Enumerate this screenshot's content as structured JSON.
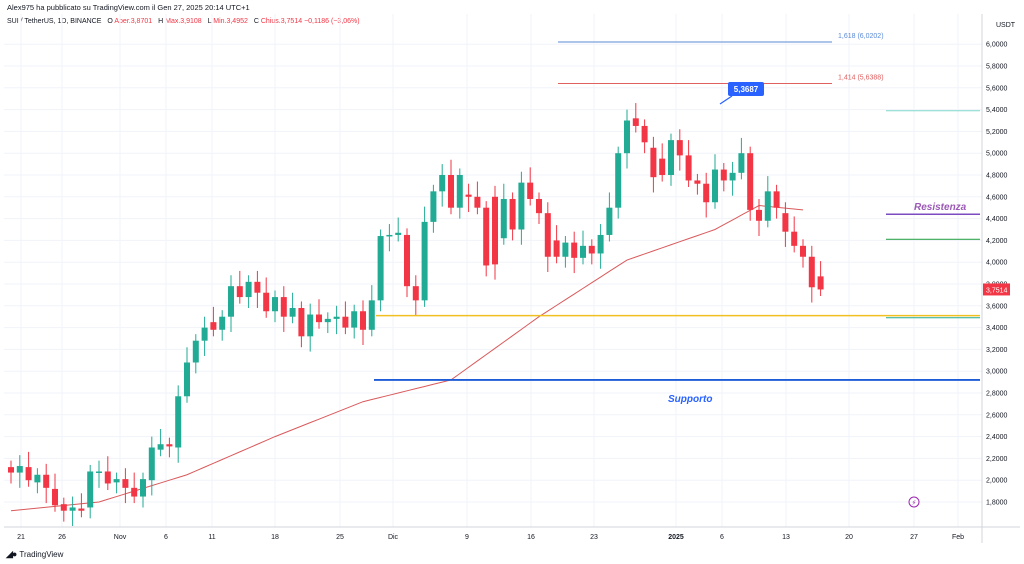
{
  "header": {
    "published": "Alex975 ha pubblicato su TradingView.com il Gen 27, 2025 20:14 UTC+1",
    "symbol": "SUI / TetherUS, 1D, BINANCE",
    "ohlc": {
      "open_label": "O",
      "open": "Aper.3,8701",
      "high_label": "H",
      "high": "Max.3,9108",
      "low_label": "L",
      "low": "Min.3,4952",
      "close_label": "C",
      "close": "Chius.3,7514",
      "change": "−0,1186 (−3,06%)"
    }
  },
  "brand": {
    "name": "TradingView",
    "logo": "tradingview-logo-icon"
  },
  "colors": {
    "up": "#22ab94",
    "down": "#f23645",
    "ma": "#d9595b",
    "support": "#1e5bd6",
    "yellow": "#f0c020",
    "resistance": "#7b4bbf",
    "green_line": "#36a852",
    "fib1618": "#5b8ad6",
    "fib1414": "#e06060",
    "teal": "#80d8cc"
  },
  "chart_data": {
    "type": "candlestick",
    "currency": "USDT",
    "ylim": [
      1.4,
      6.2
    ],
    "y_ticks": [
      "1,8000",
      "2,0000",
      "2,2000",
      "2,4000",
      "2,6000",
      "2,8000",
      "3,0000",
      "3,2000",
      "3,4000",
      "3,6000",
      "3,8000",
      "4,0000",
      "4,2000",
      "4,4000",
      "4,6000",
      "4,8000",
      "5,0000",
      "5,2000",
      "5,4000",
      "5,6000",
      "5,8000",
      "6,0000"
    ],
    "x_ticks": [
      "21",
      "26",
      "Nov",
      "6",
      "11",
      "18",
      "25",
      "Dic",
      "9",
      "16",
      "23",
      "2025",
      "6",
      "13",
      "20",
      "27",
      "Feb"
    ],
    "last_price": "3,7514",
    "high_label": "5,3687",
    "candles": [
      [
        2.12,
        2.07
      ],
      [
        2.07,
        2.13
      ],
      [
        2.12,
        2.0
      ],
      [
        1.98,
        2.05
      ],
      [
        2.05,
        1.93
      ],
      [
        1.92,
        1.77
      ],
      [
        1.78,
        1.72
      ],
      [
        1.72,
        1.75
      ],
      [
        1.74,
        1.72
      ],
      [
        1.75,
        2.08
      ],
      [
        2.07,
        2.08
      ],
      [
        2.08,
        1.97
      ],
      [
        1.98,
        2.01
      ],
      [
        2.01,
        1.93
      ],
      [
        1.93,
        1.85
      ],
      [
        1.85,
        2.01
      ],
      [
        2.0,
        2.3
      ],
      [
        2.28,
        2.33
      ],
      [
        2.33,
        2.31
      ],
      [
        2.3,
        2.77
      ],
      [
        2.77,
        3.08
      ],
      [
        3.08,
        3.28
      ],
      [
        3.28,
        3.4
      ],
      [
        3.45,
        3.38
      ],
      [
        3.38,
        3.5
      ],
      [
        3.5,
        3.78
      ],
      [
        3.78,
        3.68
      ],
      [
        3.68,
        3.82
      ],
      [
        3.82,
        3.72
      ],
      [
        3.72,
        3.55
      ],
      [
        3.55,
        3.68
      ],
      [
        3.68,
        3.5
      ],
      [
        3.5,
        3.58
      ],
      [
        3.58,
        3.32
      ],
      [
        3.32,
        3.52
      ],
      [
        3.52,
        3.45
      ],
      [
        3.45,
        3.48
      ],
      [
        3.48,
        3.5
      ],
      [
        3.5,
        3.4
      ],
      [
        3.4,
        3.55
      ],
      [
        3.55,
        3.38
      ],
      [
        3.38,
        3.65
      ],
      [
        3.65,
        4.24
      ],
      [
        4.24,
        4.25
      ],
      [
        4.25,
        4.27
      ],
      [
        4.25,
        3.78
      ],
      [
        3.78,
        3.65
      ],
      [
        3.65,
        4.37
      ],
      [
        4.37,
        4.65
      ],
      [
        4.65,
        4.8
      ],
      [
        4.8,
        4.5
      ],
      [
        4.5,
        4.8
      ],
      [
        4.62,
        4.6
      ],
      [
        4.6,
        4.5
      ],
      [
        4.5,
        3.97
      ],
      [
        4.6,
        3.98
      ],
      [
        4.22,
        4.58
      ],
      [
        4.58,
        4.3
      ],
      [
        4.3,
        4.73
      ],
      [
        4.73,
        4.58
      ],
      [
        4.58,
        4.45
      ],
      [
        4.45,
        4.05
      ],
      [
        4.2,
        4.05
      ],
      [
        4.05,
        4.18
      ],
      [
        4.18,
        4.04
      ],
      [
        4.04,
        4.15
      ],
      [
        4.15,
        4.08
      ],
      [
        4.08,
        4.25
      ],
      [
        4.25,
        4.5
      ],
      [
        4.5,
        5.0
      ],
      [
        5.0,
        5.3
      ],
      [
        5.32,
        5.25
      ],
      [
        5.25,
        5.1
      ],
      [
        5.05,
        4.78
      ],
      [
        4.95,
        4.8
      ],
      [
        4.8,
        5.12
      ],
      [
        5.12,
        4.98
      ],
      [
        4.98,
        4.75
      ],
      [
        4.75,
        4.72
      ],
      [
        4.72,
        4.55
      ],
      [
        4.55,
        4.85
      ],
      [
        4.85,
        4.75
      ],
      [
        4.75,
        4.82
      ],
      [
        4.82,
        5.0
      ],
      [
        5.0,
        4.48
      ],
      [
        4.48,
        4.38
      ],
      [
        4.38,
        4.65
      ],
      [
        4.65,
        4.5
      ],
      [
        4.45,
        4.28
      ],
      [
        4.28,
        4.15
      ],
      [
        4.15,
        4.05
      ],
      [
        4.05,
        3.77
      ],
      [
        3.87,
        3.75
      ]
    ],
    "moving_average": {
      "name": "",
      "points": [
        [
          0,
          1.72
        ],
        [
          10,
          1.8
        ],
        [
          20,
          2.05
        ],
        [
          30,
          2.4
        ],
        [
          40,
          2.72
        ],
        [
          50,
          2.92
        ],
        [
          60,
          3.5
        ],
        [
          70,
          4.02
        ],
        [
          80,
          4.3
        ],
        [
          85,
          4.52
        ],
        [
          90,
          4.48
        ]
      ]
    },
    "levels": [
      {
        "name": "Supporto",
        "value": 2.92,
        "color": "#1e5bd6"
      },
      {
        "name": "Resistenza",
        "value": 4.44,
        "color": "#7b4bbf"
      },
      {
        "name": "",
        "value": 3.51,
        "color": "#f0c020"
      },
      {
        "name": "",
        "value": 4.21,
        "color": "#36a852"
      },
      {
        "name": "",
        "value": 5.39,
        "color": "#80d8cc"
      },
      {
        "name": "1,618 (6,0202)",
        "value": 6.02,
        "color": "#5b8ad6"
      },
      {
        "name": "1,414 (5,6388)",
        "value": 5.64,
        "color": "#e06060"
      }
    ],
    "marker": {
      "icon": "lightning-icon"
    }
  }
}
